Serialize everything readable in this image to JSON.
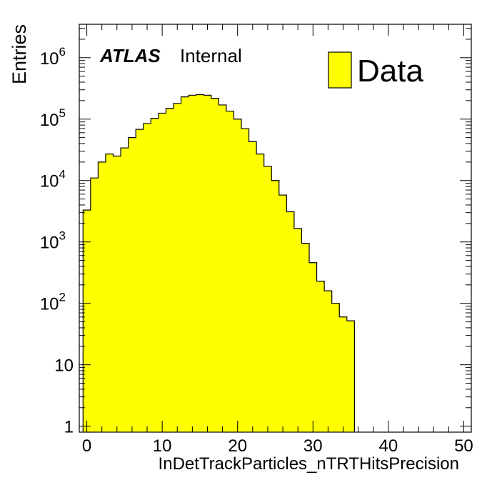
{
  "chart_data": {
    "type": "histogram",
    "ylabel": "Entries",
    "xlabel": "InDetTrackParticles_nTRTHitsPrecision",
    "xlim": [
      -1,
      51
    ],
    "ylim": [
      0.8,
      3500000
    ],
    "yscale": "log",
    "fill_color": "#ffff00",
    "edge_color": "#000000",
    "experiment_label": "ATLAS",
    "status_label": "Internal",
    "legend": {
      "position": "top-right",
      "entries": [
        "Data"
      ]
    },
    "x_ticks": [
      "0",
      "10",
      "20",
      "30",
      "40",
      "50"
    ],
    "y_ticks": [
      {
        "value": 1,
        "base": "1",
        "exp": ""
      },
      {
        "value": 10,
        "base": "10",
        "exp": ""
      },
      {
        "value": 100,
        "base": "10",
        "exp": "2"
      },
      {
        "value": 1000,
        "base": "10",
        "exp": "3"
      },
      {
        "value": 10000,
        "base": "10",
        "exp": "4"
      },
      {
        "value": 100000,
        "base": "10",
        "exp": "5"
      },
      {
        "value": 1000000,
        "base": "10",
        "exp": "6"
      }
    ],
    "bins": [
      {
        "low": -0.5,
        "high": 0.5,
        "value": 3300
      },
      {
        "low": 0.5,
        "high": 1.5,
        "value": 11000
      },
      {
        "low": 1.5,
        "high": 2.5,
        "value": 20000
      },
      {
        "low": 2.5,
        "high": 3.5,
        "value": 27000
      },
      {
        "low": 3.5,
        "high": 4.5,
        "value": 25000
      },
      {
        "low": 4.5,
        "high": 5.5,
        "value": 34000
      },
      {
        "low": 5.5,
        "high": 6.5,
        "value": 50000
      },
      {
        "low": 6.5,
        "high": 7.5,
        "value": 68000
      },
      {
        "low": 7.5,
        "high": 8.5,
        "value": 85000
      },
      {
        "low": 8.5,
        "high": 9.5,
        "value": 103000
      },
      {
        "low": 9.5,
        "high": 10.5,
        "value": 125000
      },
      {
        "low": 10.5,
        "high": 11.5,
        "value": 150000
      },
      {
        "low": 11.5,
        "high": 12.5,
        "value": 180000
      },
      {
        "low": 12.5,
        "high": 13.5,
        "value": 230000
      },
      {
        "low": 13.5,
        "high": 14.5,
        "value": 245000
      },
      {
        "low": 14.5,
        "high": 15.5,
        "value": 250000
      },
      {
        "low": 15.5,
        "high": 16.5,
        "value": 245000
      },
      {
        "low": 16.5,
        "high": 17.5,
        "value": 218000
      },
      {
        "low": 17.5,
        "high": 18.5,
        "value": 170000
      },
      {
        "low": 18.5,
        "high": 19.5,
        "value": 135000
      },
      {
        "low": 19.5,
        "high": 20.5,
        "value": 100000
      },
      {
        "low": 20.5,
        "high": 21.5,
        "value": 70000
      },
      {
        "low": 21.5,
        "high": 22.5,
        "value": 43000
      },
      {
        "low": 22.5,
        "high": 23.5,
        "value": 27000
      },
      {
        "low": 23.5,
        "high": 24.5,
        "value": 17000
      },
      {
        "low": 24.5,
        "high": 25.5,
        "value": 10000
      },
      {
        "low": 25.5,
        "high": 26.5,
        "value": 5800
      },
      {
        "low": 26.5,
        "high": 27.5,
        "value": 3100
      },
      {
        "low": 27.5,
        "high": 28.5,
        "value": 1650
      },
      {
        "low": 28.5,
        "high": 29.5,
        "value": 950
      },
      {
        "low": 29.5,
        "high": 30.5,
        "value": 460
      },
      {
        "low": 30.5,
        "high": 31.5,
        "value": 230
      },
      {
        "low": 31.5,
        "high": 32.5,
        "value": 160
      },
      {
        "low": 32.5,
        "high": 33.5,
        "value": 100
      },
      {
        "low": 33.5,
        "high": 34.5,
        "value": 60
      },
      {
        "low": 34.5,
        "high": 35.5,
        "value": 52
      }
    ]
  }
}
